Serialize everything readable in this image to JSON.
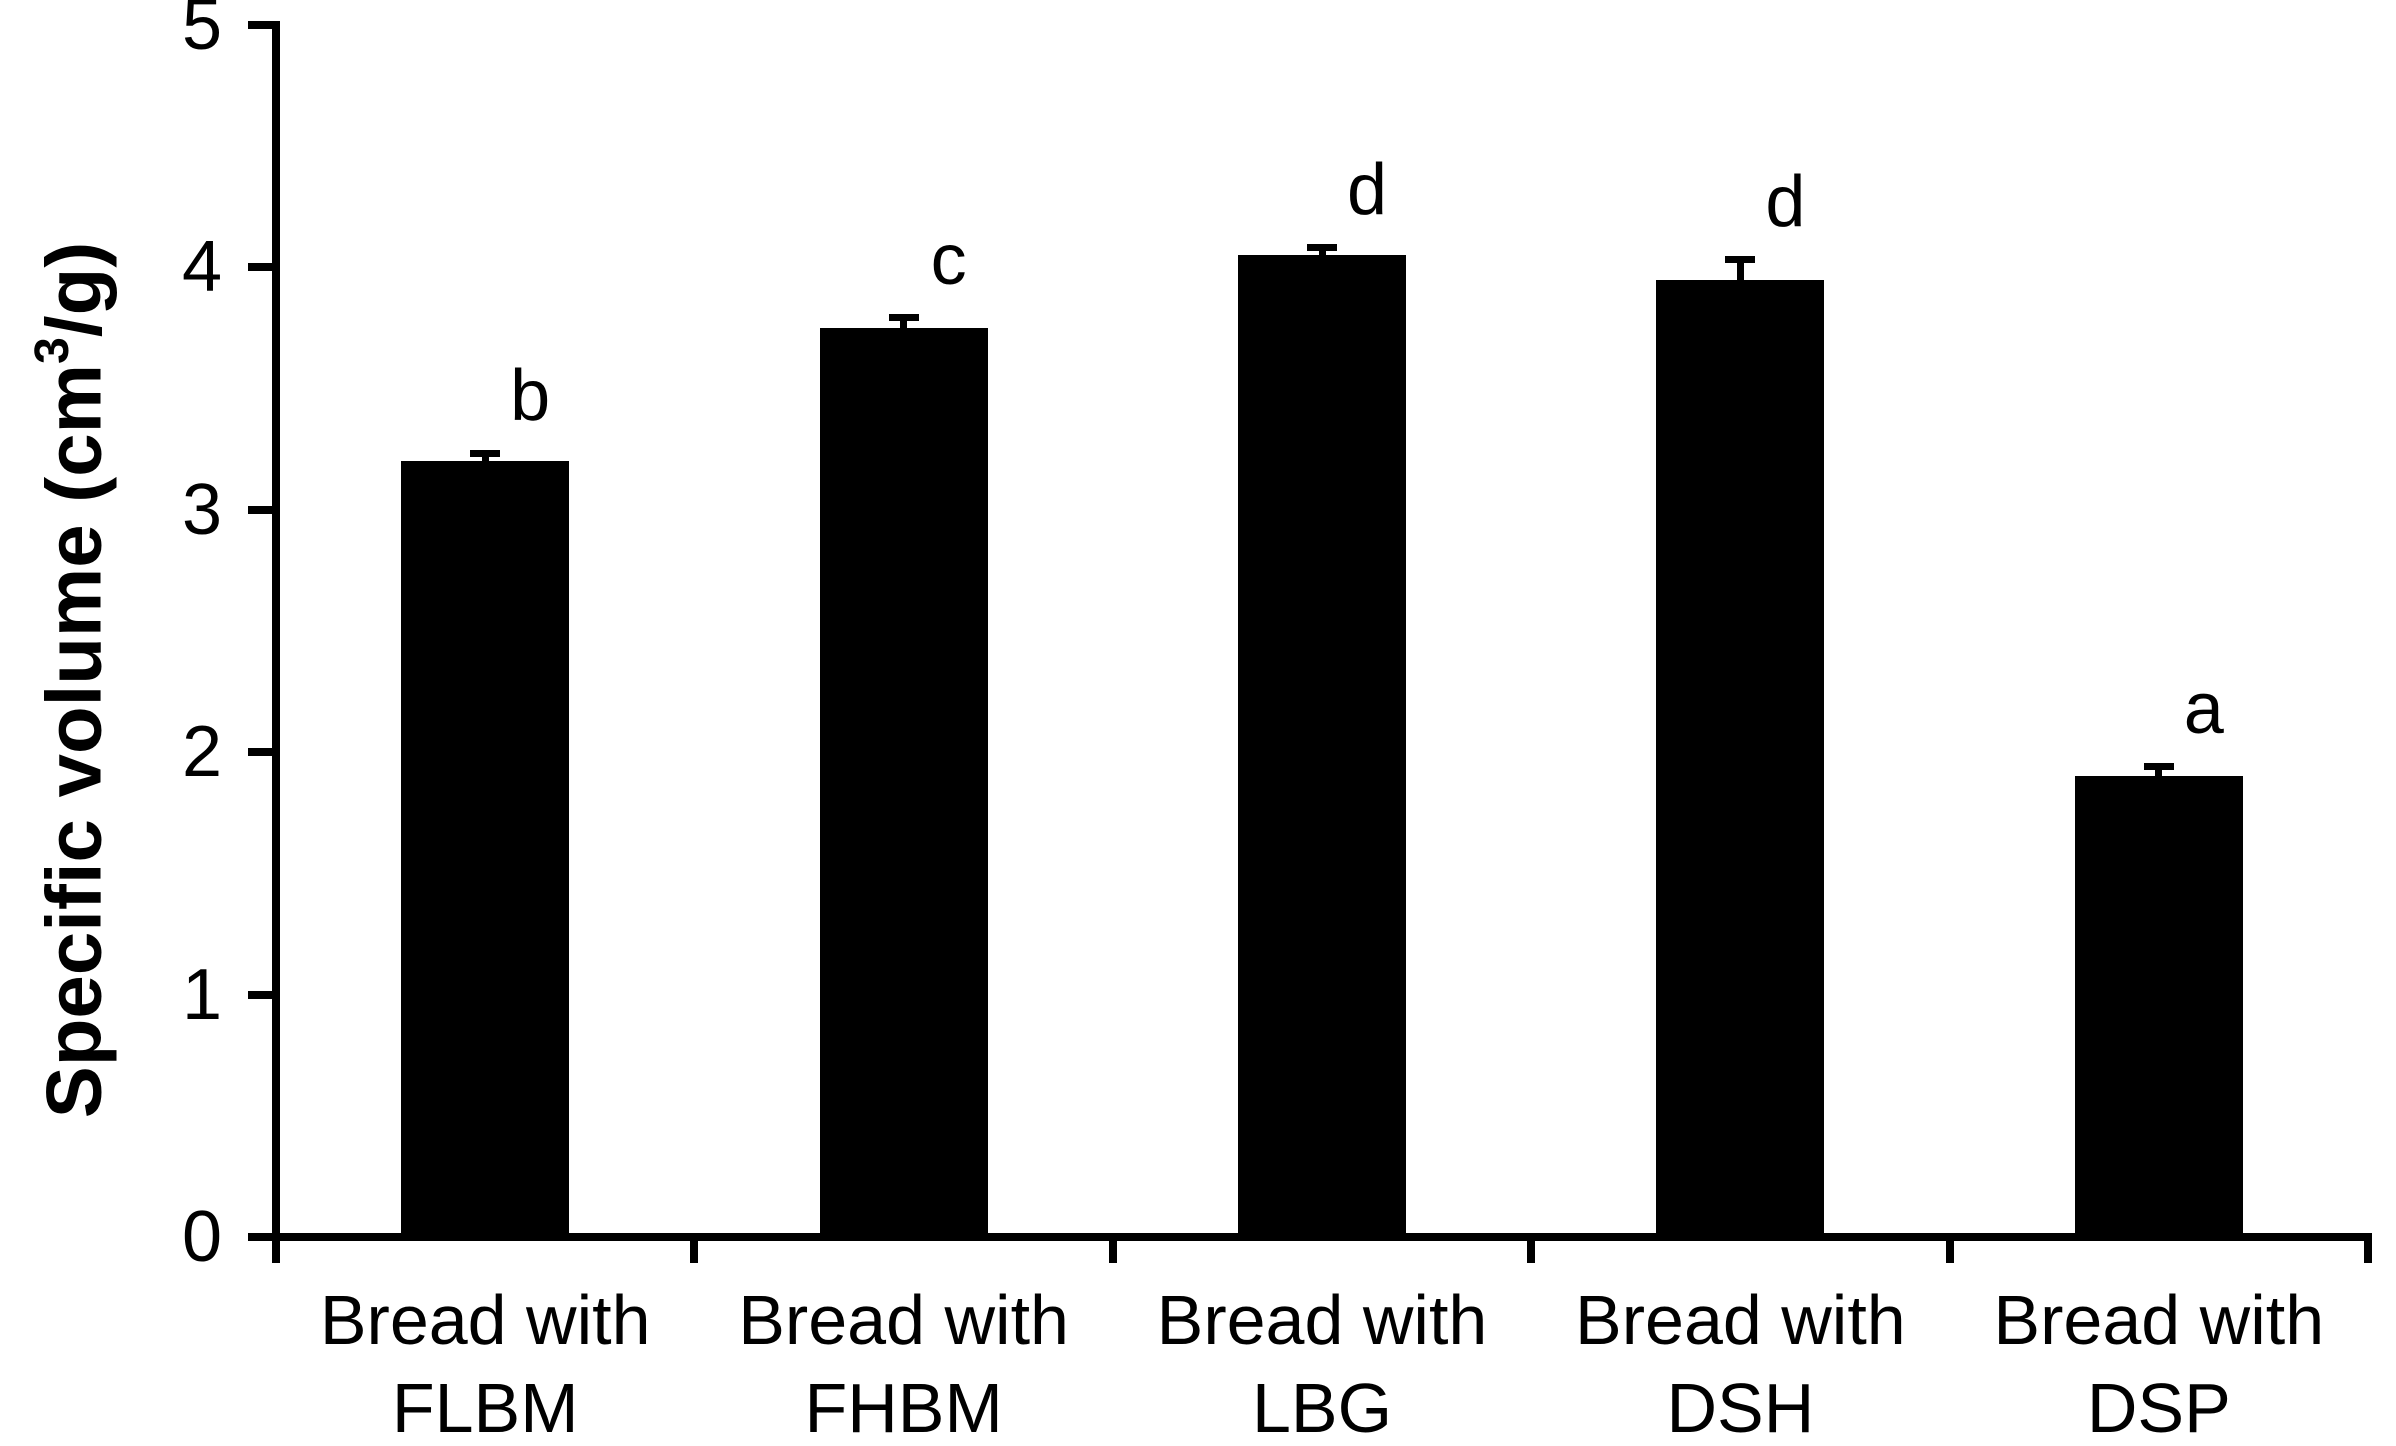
{
  "chart_data": {
    "type": "bar",
    "title": "",
    "xlabel": "",
    "ylabel": "Specific volume (cm³/g)",
    "ylabel_parts": {
      "prefix": "Specific volume (cm",
      "superscript": "3",
      "suffix": "/g)"
    },
    "categories": [
      "Bread with\nFLBM",
      "Bread with\nFHBM",
      "Bread with\nLBG",
      "Bread with\nDSH",
      "Bread with\nDSP"
    ],
    "values": [
      3.2,
      3.75,
      4.05,
      3.95,
      1.9
    ],
    "errors": [
      0.03,
      0.04,
      0.03,
      0.08,
      0.04
    ],
    "sig_letters": [
      "b",
      "c",
      "d",
      "d",
      "a"
    ],
    "yticks": [
      0,
      1,
      2,
      3,
      4,
      5
    ],
    "ylim": [
      0,
      5
    ],
    "grid": false,
    "legend": null,
    "bar_color": "#000000",
    "axis_color": "#000000",
    "background_color": "#ffffff"
  }
}
